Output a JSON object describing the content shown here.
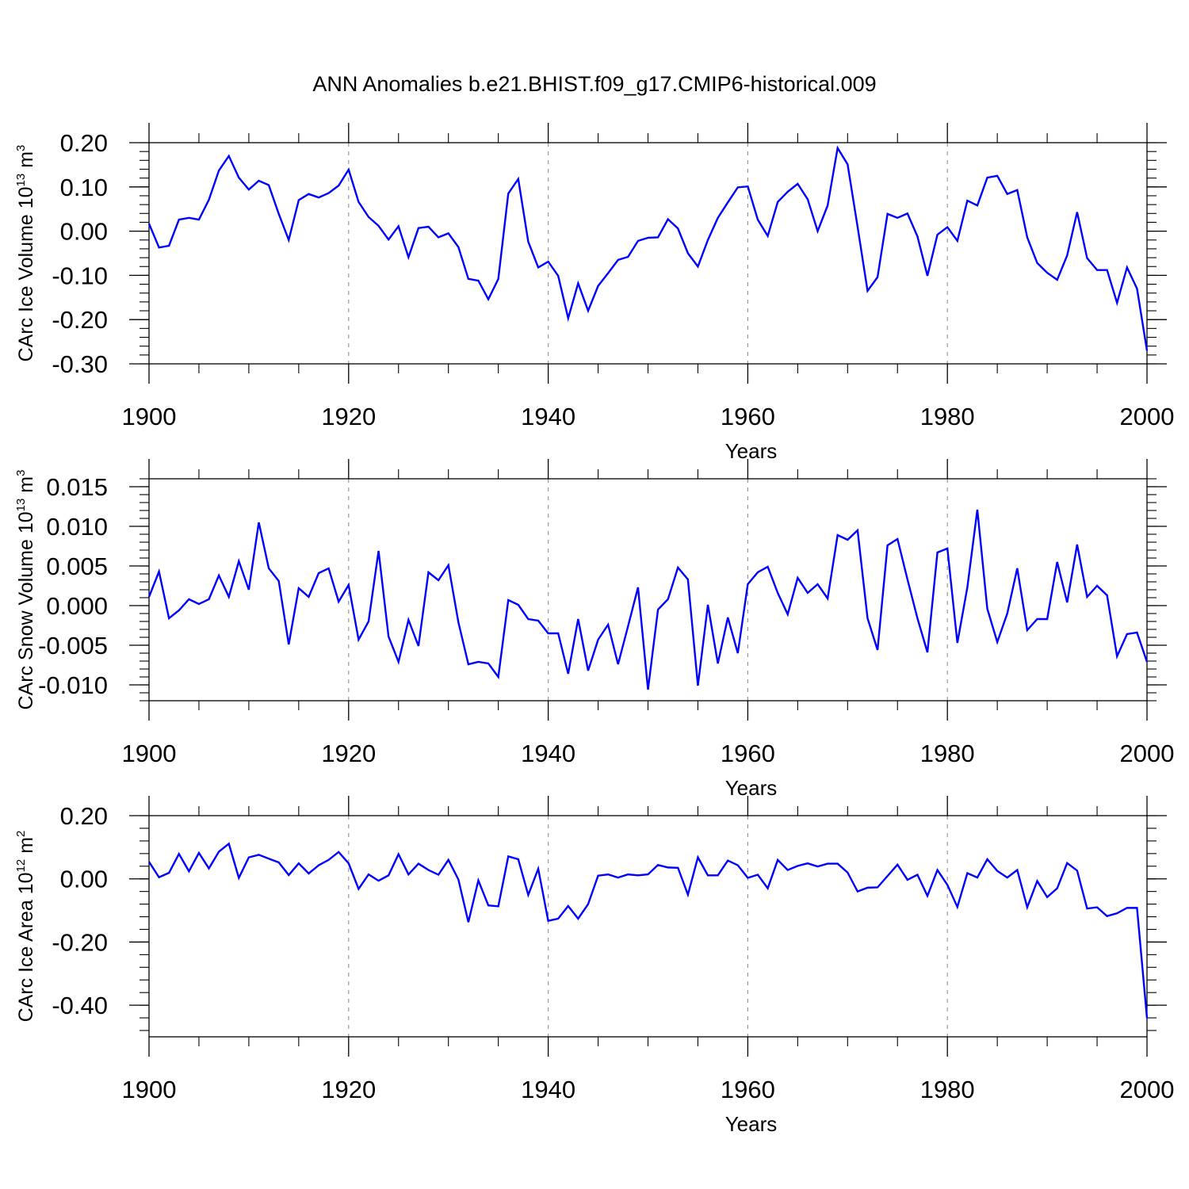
{
  "figure_title": "ANN Anomalies b.e21.BHIST.f09_g17.CMIP6-historical.009",
  "colors": {
    "line": "#0000ff",
    "axis": "#000000",
    "grid": "#999999"
  },
  "chart_data": [
    {
      "type": "line",
      "name": "ice-volume",
      "xlabel": "Years",
      "ylabel": {
        "pre": "CArc Ice Volume 10",
        "exp": "13",
        "mid": " m",
        "exp2": "3"
      },
      "xlim": [
        1900,
        2000
      ],
      "ylim": [
        -0.3,
        0.2
      ],
      "xticks": [
        1900,
        1920,
        1940,
        1960,
        1980,
        2000
      ],
      "xtick_labels": [
        "1900",
        "1920",
        "1940",
        "1960",
        "1980",
        "2000"
      ],
      "yticks": [
        0.2,
        0.1,
        0.0,
        -0.1,
        -0.2,
        -0.3
      ],
      "ytick_labels": [
        "0.20",
        "0.10",
        "0.00",
        "-0.10",
        "-0.20",
        "-0.30"
      ],
      "minor_step": 0.02,
      "x_start": 1900,
      "values": [
        0.017,
        -0.037,
        -0.033,
        0.026,
        0.03,
        0.026,
        0.071,
        0.137,
        0.17,
        0.121,
        0.094,
        0.114,
        0.104,
        0.039,
        -0.02,
        0.07,
        0.084,
        0.076,
        0.086,
        0.103,
        0.139,
        0.066,
        0.032,
        0.012,
        -0.019,
        0.011,
        -0.059,
        0.007,
        0.01,
        -0.014,
        -0.005,
        -0.036,
        -0.108,
        -0.112,
        -0.154,
        -0.108,
        0.085,
        0.118,
        -0.024,
        -0.082,
        -0.069,
        -0.101,
        -0.197,
        -0.118,
        -0.18,
        -0.124,
        -0.095,
        -0.065,
        -0.058,
        -0.022,
        -0.015,
        -0.014,
        0.027,
        0.006,
        -0.05,
        -0.08,
        -0.02,
        0.03,
        0.065,
        0.099,
        0.101,
        0.026,
        -0.011,
        0.066,
        0.089,
        0.107,
        0.072,
        0.0,
        0.058,
        0.188,
        0.151,
        0.01,
        -0.135,
        -0.104,
        0.039,
        0.03,
        0.04,
        -0.012,
        -0.101,
        -0.008,
        0.009,
        -0.022,
        0.069,
        0.058,
        0.121,
        0.125,
        0.084,
        0.093,
        -0.014,
        -0.072,
        -0.094,
        -0.11,
        -0.055,
        0.043,
        -0.061,
        -0.088,
        -0.088,
        -0.162,
        -0.082,
        -0.13,
        -0.27
      ]
    },
    {
      "type": "line",
      "name": "snow-volume",
      "xlabel": "Years",
      "ylabel": {
        "pre": "CArc Snow Volume 10",
        "exp": "13",
        "mid": " m",
        "exp2": "3"
      },
      "xlim": [
        1900,
        2000
      ],
      "ylim": [
        -0.012,
        0.016
      ],
      "xticks": [
        1900,
        1920,
        1940,
        1960,
        1980,
        2000
      ],
      "xtick_labels": [
        "1900",
        "1920",
        "1940",
        "1960",
        "1980",
        "2000"
      ],
      "yticks": [
        0.015,
        0.01,
        0.005,
        0.0,
        -0.005,
        -0.01
      ],
      "ytick_labels": [
        "0.015",
        "0.010",
        "0.005",
        "0.000",
        "-0.005",
        "-0.010"
      ],
      "minor_step": 0.001,
      "x_start": 1900,
      "values": [
        0.0011,
        0.0043,
        -0.0016,
        -0.0006,
        0.0008,
        0.0002,
        0.0008,
        0.0038,
        0.0011,
        0.0056,
        0.002,
        0.0105,
        0.0047,
        0.0031,
        -0.0049,
        0.0022,
        0.0011,
        0.0041,
        0.0047,
        0.0005,
        0.0026,
        -0.0043,
        -0.002,
        0.0069,
        -0.0039,
        -0.0071,
        -0.0018,
        -0.0051,
        0.0042,
        0.0032,
        0.0051,
        -0.0021,
        -0.0074,
        -0.0071,
        -0.0073,
        -0.009,
        0.0007,
        0.0001,
        -0.0017,
        -0.0019,
        -0.0035,
        -0.0035,
        -0.0086,
        -0.0017,
        -0.0082,
        -0.0043,
        -0.0024,
        -0.0074,
        -0.0026,
        0.0023,
        -0.0106,
        -0.0005,
        0.0008,
        0.0048,
        0.0033,
        -0.0101,
        0.0001,
        -0.0073,
        -0.0015,
        -0.006,
        0.0027,
        0.0042,
        0.0049,
        0.0016,
        -0.0011,
        0.0035,
        0.0016,
        0.0027,
        0.0009,
        0.0089,
        0.0083,
        0.0095,
        -0.0016,
        -0.0056,
        0.0076,
        0.0084,
        0.0033,
        -0.0016,
        -0.0059,
        0.0067,
        0.0072,
        -0.0047,
        0.0023,
        0.0121,
        -0.0004,
        -0.0046,
        -0.001,
        0.0047,
        -0.0031,
        -0.0017,
        -0.0017,
        0.0055,
        0.0004,
        0.0077,
        0.0011,
        0.0025,
        0.0013,
        -0.0064,
        -0.0036,
        -0.0034,
        -0.0071
      ]
    },
    {
      "type": "line",
      "name": "ice-area",
      "xlabel": "Years",
      "ylabel": {
        "pre": "CArc Ice Area 10",
        "exp": "12",
        "mid": " m",
        "exp2": "2"
      },
      "xlim": [
        1900,
        2000
      ],
      "ylim": [
        -0.5,
        0.2
      ],
      "xticks": [
        1900,
        1920,
        1940,
        1960,
        1980,
        2000
      ],
      "xtick_labels": [
        "1900",
        "1920",
        "1940",
        "1960",
        "1980",
        "2000"
      ],
      "yticks": [
        0.2,
        0.0,
        -0.2,
        -0.4
      ],
      "ytick_labels": [
        "0.20",
        "0.00",
        "-0.20",
        "-0.40"
      ],
      "minor_step": 0.04,
      "x_start": 1900,
      "values": [
        0.054,
        0.005,
        0.019,
        0.079,
        0.024,
        0.082,
        0.033,
        0.086,
        0.111,
        0.003,
        0.068,
        0.076,
        0.064,
        0.052,
        0.012,
        0.049,
        0.017,
        0.043,
        0.06,
        0.085,
        0.049,
        -0.032,
        0.014,
        -0.006,
        0.011,
        0.078,
        0.014,
        0.048,
        0.028,
        0.013,
        0.06,
        -0.002,
        -0.137,
        -0.005,
        -0.084,
        -0.087,
        0.071,
        0.062,
        -0.051,
        0.032,
        -0.133,
        -0.126,
        -0.086,
        -0.126,
        -0.08,
        0.01,
        0.014,
        0.004,
        0.014,
        0.011,
        0.014,
        0.044,
        0.036,
        0.035,
        -0.05,
        0.068,
        0.011,
        0.011,
        0.058,
        0.043,
        0.003,
        0.013,
        -0.03,
        0.06,
        0.028,
        0.041,
        0.049,
        0.039,
        0.048,
        0.048,
        0.02,
        -0.04,
        -0.028,
        -0.027,
        0.009,
        0.045,
        -0.003,
        0.013,
        -0.054,
        0.028,
        -0.019,
        -0.089,
        0.018,
        0.004,
        0.062,
        0.025,
        0.004,
        0.028,
        -0.09,
        -0.007,
        -0.058,
        -0.03,
        0.05,
        0.026,
        -0.094,
        -0.09,
        -0.118,
        -0.109,
        -0.092,
        -0.092,
        -0.441
      ]
    }
  ]
}
